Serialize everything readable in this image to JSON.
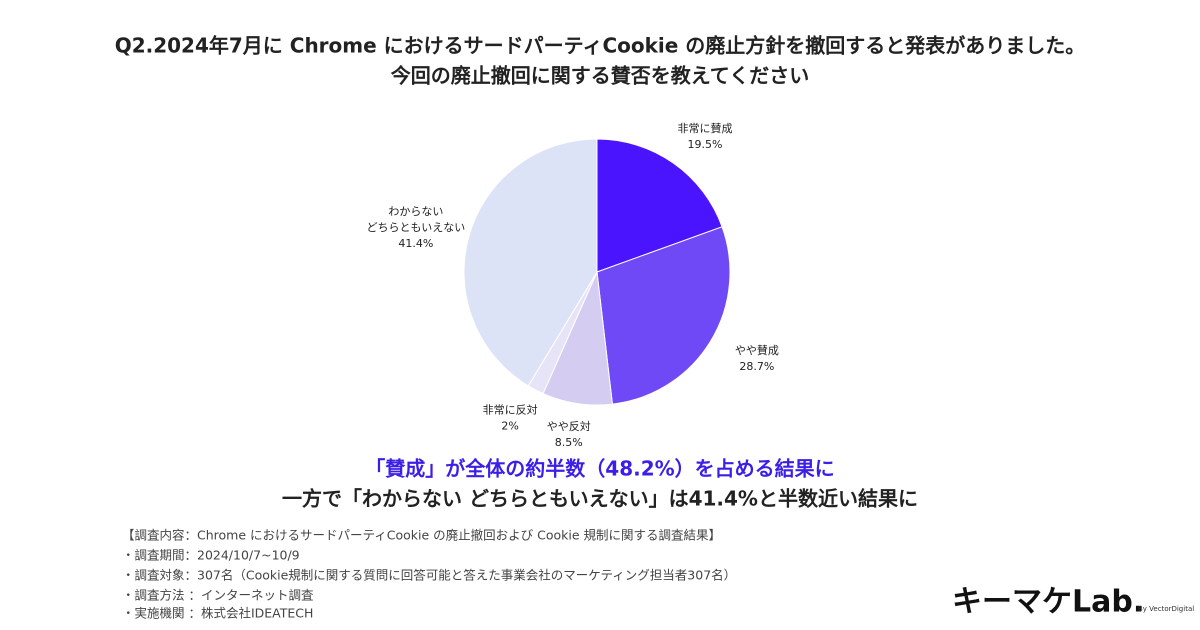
{
  "chart_data": {
    "type": "pie",
    "title": [
      "Q2.2024年7月に Chrome におけるサードパーティCookie の廃止方針を撤回すると発表がありました。",
      "今回の廃止撤回に関する賛否を教えてください"
    ],
    "categories": [
      "非常に賛成",
      "やや賛成",
      "やや反対",
      "非常に反対",
      "わからない\nどちらともいえない"
    ],
    "values": [
      19.5,
      28.7,
      8.5,
      2,
      41.4
    ],
    "value_labels": [
      "19.5%",
      "28.7%",
      "8.5%",
      "2%",
      "41.4%"
    ],
    "colors": [
      "#4b14ff",
      "#7049f7",
      "#d5ccf2",
      "#e8e4f8",
      "#dde3f7"
    ]
  },
  "conclusion": [
    "「賛成」が全体の約半数（48.2%）を占める結果に",
    "一方で「わからない どちらともいえない」は41.4%と半数近い結果に"
  ],
  "notes": [
    "【調査内容：Chrome におけるサードパーティCookie の廃止撤回および Cookie 規制に関する調査結果】",
    "・調査期間：2024/10/7~10/9",
    "・調査対象：307名（Cookie規制に関する質問に回答可能と答えた事業会社のマーケティング担当者307名）",
    "・調査方法 ：インターネット調査",
    "・実施機関 ：株式会社IDEATECH"
  ],
  "logo": {
    "name": "キーマケLab.",
    "by": "By VectorDigital"
  }
}
